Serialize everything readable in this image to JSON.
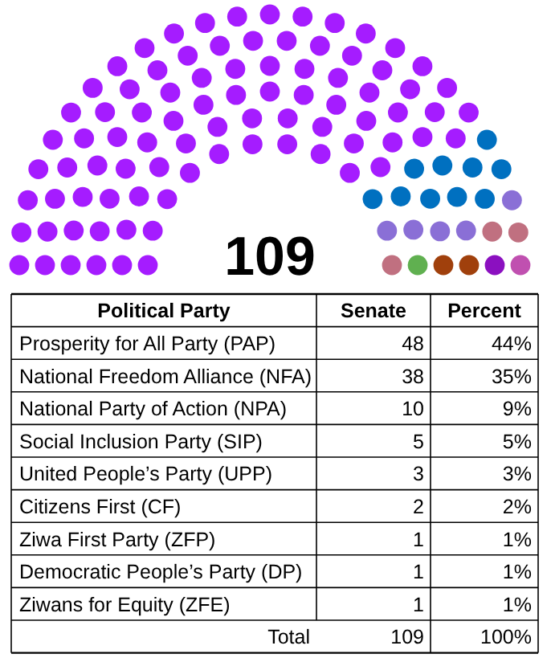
{
  "chart_data": {
    "type": "other",
    "xlabel": "Political Party",
    "categories": [
      "Prosperity for All Party (PAP)",
      "National Freedom Alliance (NFA)",
      "National Party of Action (NPA)",
      "Social Inclusion Party (SIP)",
      "United People’s Party (UPP)",
      "Citizens First (CF)",
      "Ziwa First Party (ZFP)",
      "Democratic People’s Party (DP)",
      "Ziwans for Equity (ZFE)"
    ],
    "colors": [
      "#a51cff",
      "#a51cff",
      "#0070c0",
      "#8a6fd6",
      "#c07080",
      "#a0400c",
      "#8b10c0",
      "#c050b0",
      "#60b050"
    ],
    "series": [
      {
        "name": "Senate",
        "values": [
          48,
          38,
          10,
          5,
          3,
          2,
          1,
          1,
          1
        ]
      },
      {
        "name": "Percent",
        "values": [
          44,
          35,
          9,
          5,
          3,
          2,
          1,
          1,
          1
        ],
        "value_labels": [
          "44%",
          "35%",
          "9%",
          "5%",
          "3%",
          "2%",
          "1%",
          "1%",
          "1%"
        ]
      }
    ],
    "data_labels": true,
    "annotations": [
      "Total"
    ],
    "totals": [
      "109",
      "100%"
    ]
  }
}
